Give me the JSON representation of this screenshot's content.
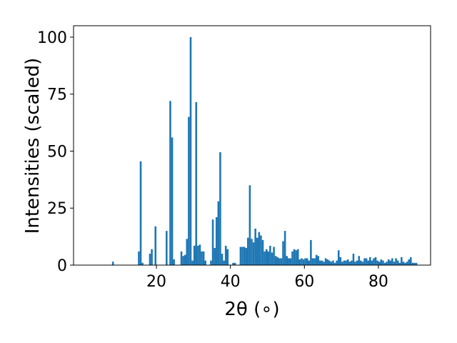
{
  "chart_data": {
    "type": "histogram",
    "xlabel": "2θ (∘)",
    "ylabel": "Intensities (scaled)",
    "color": "#1f77b4",
    "xlim": [
      -2.4,
      94.1
    ],
    "ylim": [
      0,
      105
    ],
    "xticks": [
      20,
      40,
      60,
      80
    ],
    "yticks": [
      0,
      25,
      50,
      75,
      100
    ],
    "bins": [
      7,
      7.5,
      8,
      8.5,
      9,
      9.5,
      10,
      10.5,
      11,
      11.5,
      12,
      12.5,
      13,
      13.5,
      14,
      14.5,
      15,
      15.5,
      16,
      16.5,
      17,
      17.5,
      18,
      18.5,
      19,
      19.5,
      20,
      20.5,
      21,
      21.5,
      22,
      22.5,
      23,
      23.5,
      24,
      24.5,
      25,
      25.5,
      26,
      26.5,
      27,
      27.5,
      28,
      28.5,
      29,
      29.5,
      30,
      30.5,
      31,
      31.5,
      32,
      32.5,
      33,
      33.5,
      34,
      34.5,
      35,
      35.5,
      36,
      36.5,
      37,
      37.5,
      38,
      38.5,
      39,
      39.5,
      40,
      40.5,
      41,
      41.5,
      42,
      42.5,
      43,
      43.5,
      44,
      44.5,
      45,
      45.5,
      46,
      46.5,
      47,
      47.5,
      48,
      48.5,
      49,
      49.5,
      50,
      50.5,
      51,
      51.5,
      52,
      52.5,
      53,
      53.5,
      54,
      54.5,
      55,
      55.5,
      56,
      56.5,
      57,
      57.5,
      58,
      58.5,
      59,
      59.5,
      60,
      60.5,
      61,
      61.5,
      62,
      62.5,
      63,
      63.5,
      64,
      64.5,
      65,
      65.5,
      66,
      66.5,
      67,
      67.5,
      68,
      68.5,
      69,
      69.5,
      70,
      70.5,
      71,
      71.5,
      72,
      72.5,
      73,
      73.5,
      74,
      74.5,
      75,
      75.5,
      76,
      76.5,
      77,
      77.5,
      78,
      78.5,
      79,
      79.5,
      80,
      80.5,
      81,
      81.5,
      82,
      82.5,
      83,
      83.5,
      84,
      84.5,
      85,
      85.5,
      86,
      86.5,
      87,
      87.5,
      88,
      88.5,
      89,
      89.5,
      90,
      90.5
    ],
    "values": [
      0,
      0,
      1.5,
      0,
      0,
      0,
      0,
      0,
      0,
      0,
      0,
      0,
      0,
      0,
      0,
      0,
      6,
      45.5,
      1,
      0,
      0,
      0,
      5,
      7,
      0,
      17,
      0,
      0,
      0,
      0,
      0,
      15,
      0,
      72,
      56,
      2.5,
      0,
      0,
      0,
      6,
      4,
      4.5,
      11.5,
      65,
      100,
      2,
      8.5,
      71.5,
      8.5,
      9,
      6,
      6,
      2,
      0,
      0,
      2,
      20,
      7.5,
      21,
      28,
      49.5,
      5,
      2,
      8.5,
      7,
      0,
      0,
      1,
      1,
      0,
      0,
      8,
      8,
      8,
      7.5,
      12,
      35,
      11.5,
      10,
      16,
      12,
      14.5,
      13,
      11,
      6,
      7,
      6,
      8.5,
      5.5,
      8,
      4,
      3.5,
      3,
      3,
      10.5,
      15,
      4,
      3,
      3,
      6,
      7,
      6.5,
      7,
      2.5,
      3,
      2.5,
      3,
      3,
      2,
      11,
      3,
      3,
      4.5,
      4,
      2,
      2,
      1.5,
      3,
      2.5,
      2,
      1.5,
      2,
      1,
      2,
      6.5,
      3.5,
      1.5,
      2,
      2,
      2.5,
      1.5,
      2,
      5,
      1.5,
      2,
      4,
      2,
      1.5,
      3,
      3,
      2,
      3.5,
      2,
      3,
      3.5,
      2,
      1.5,
      2.5,
      2,
      1,
      1.5,
      2.5,
      2,
      3,
      1.5,
      3,
      2,
      1,
      3.5,
      1.5,
      1,
      1.5,
      2.5,
      3.5,
      1,
      1,
      1
    ]
  }
}
